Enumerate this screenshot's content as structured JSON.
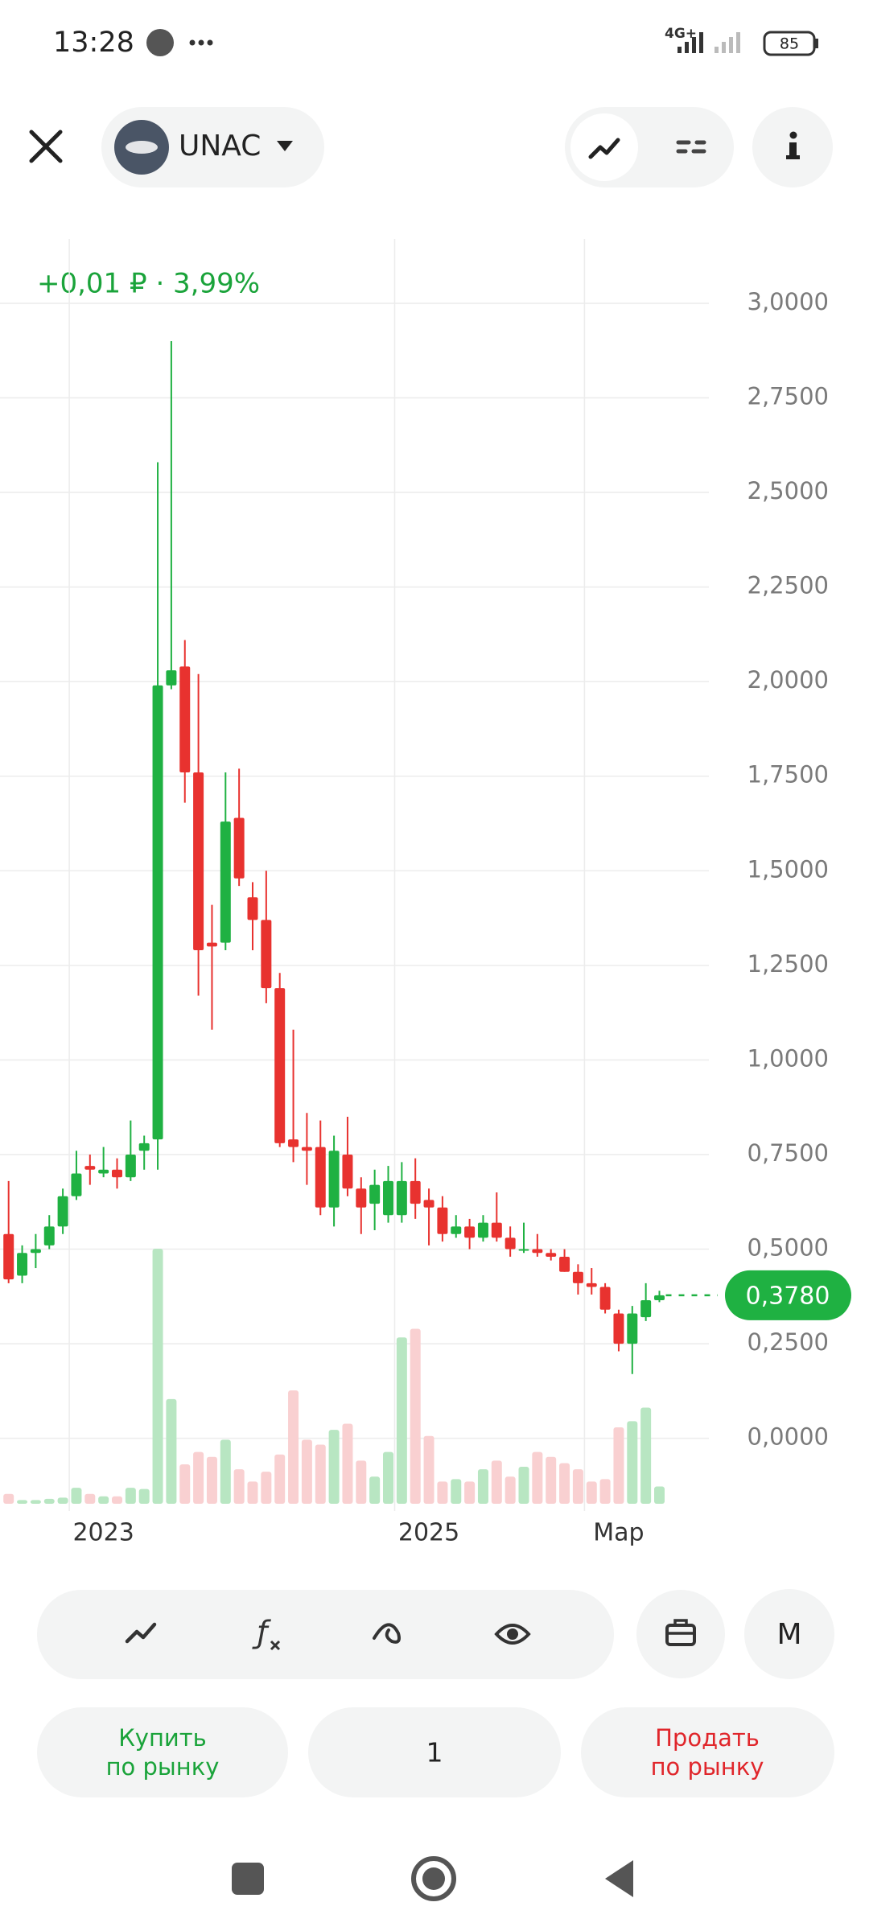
{
  "status_bar": {
    "time": "13:28",
    "network": "4G+",
    "battery": "85"
  },
  "header": {
    "ticker": "UNAC"
  },
  "chart_data": {
    "type": "candlestick",
    "annotation": "+0,01 ₽ · 3,99%",
    "categories": [
      null,
      null,
      null,
      null,
      null,
      null,
      null,
      "2023",
      null,
      null,
      null,
      null,
      null,
      null,
      null,
      null,
      null,
      null,
      null,
      null,
      null,
      null,
      null,
      null,
      null,
      null,
      null,
      null,
      null,
      null,
      null,
      "2025",
      null,
      null,
      null,
      null,
      null,
      null,
      null,
      null,
      null,
      null,
      null,
      null,
      null,
      "Мар",
      null,
      null,
      null
    ],
    "open": [
      0.54,
      0.43,
      0.49,
      0.51,
      0.56,
      0.64,
      0.72,
      0.7,
      0.71,
      0.69,
      0.76,
      0.79,
      1.99,
      2.04,
      1.76,
      1.31,
      1.31,
      1.64,
      1.43,
      1.37,
      1.19,
      0.79,
      0.77,
      0.77,
      0.61,
      0.75,
      0.66,
      0.62,
      0.59,
      0.59,
      0.68,
      0.63,
      0.61,
      0.54,
      0.56,
      0.53,
      0.57,
      0.53,
      0.5,
      0.5,
      0.49,
      0.48,
      0.44,
      0.41,
      0.4,
      0.33,
      0.25,
      0.32,
      0.365
    ],
    "high": [
      0.68,
      0.51,
      0.54,
      0.59,
      0.66,
      0.76,
      0.75,
      0.77,
      0.74,
      0.84,
      0.8,
      2.58,
      2.9,
      2.11,
      2.02,
      1.41,
      1.76,
      1.77,
      1.47,
      1.5,
      1.23,
      1.08,
      0.86,
      0.84,
      0.8,
      0.85,
      0.69,
      0.71,
      0.72,
      0.73,
      0.74,
      0.66,
      0.64,
      0.59,
      0.58,
      0.59,
      0.65,
      0.56,
      0.57,
      0.54,
      0.5,
      0.5,
      0.46,
      0.45,
      0.41,
      0.34,
      0.35,
      0.41,
      0.39
    ],
    "low": [
      0.41,
      0.41,
      0.45,
      0.5,
      0.54,
      0.63,
      0.67,
      0.69,
      0.66,
      0.68,
      0.71,
      0.71,
      1.98,
      1.68,
      1.17,
      1.08,
      1.29,
      1.46,
      1.29,
      1.15,
      0.77,
      0.73,
      0.67,
      0.59,
      0.56,
      0.64,
      0.54,
      0.55,
      0.57,
      0.57,
      0.58,
      0.51,
      0.52,
      0.53,
      0.5,
      0.52,
      0.52,
      0.48,
      0.49,
      0.48,
      0.47,
      0.44,
      0.38,
      0.38,
      0.33,
      0.23,
      0.17,
      0.31,
      0.36
    ],
    "close": [
      0.42,
      0.49,
      0.5,
      0.56,
      0.64,
      0.7,
      0.71,
      0.71,
      0.69,
      0.75,
      0.78,
      1.99,
      2.03,
      1.76,
      1.29,
      1.3,
      1.63,
      1.48,
      1.37,
      1.19,
      0.78,
      0.77,
      0.76,
      0.61,
      0.76,
      0.66,
      0.61,
      0.67,
      0.68,
      0.68,
      0.62,
      0.61,
      0.54,
      0.56,
      0.53,
      0.57,
      0.53,
      0.5,
      0.5,
      0.49,
      0.48,
      0.44,
      0.41,
      0.4,
      0.34,
      0.25,
      0.33,
      0.365,
      0.378
    ],
    "volume": [
      8,
      3,
      3,
      4,
      5,
      13,
      8,
      6,
      6,
      13,
      12,
      207,
      85,
      32,
      42,
      38,
      52,
      28,
      18,
      26,
      40,
      92,
      52,
      48,
      60,
      65,
      35,
      22,
      42,
      135,
      142,
      55,
      18,
      20,
      18,
      28,
      35,
      22,
      30,
      42,
      38,
      33,
      28,
      18,
      20,
      62,
      67,
      78,
      14
    ],
    "ylim": [
      -0.19,
      3.17
    ],
    "yticks": [
      {
        "value": 0,
        "label": "0,0000"
      },
      {
        "value": 0.25,
        "label": "0,2500"
      },
      {
        "value": 0.5,
        "label": "0,5000"
      },
      {
        "value": 0.75,
        "label": "0,7500"
      },
      {
        "value": 1,
        "label": "1,0000"
      },
      {
        "value": 1.25,
        "label": "1,2500"
      },
      {
        "value": 1.5,
        "label": "1,5000"
      },
      {
        "value": 1.75,
        "label": "1,7500"
      },
      {
        "value": 2,
        "label": "2,0000"
      },
      {
        "value": 2.25,
        "label": "2,2500"
      },
      {
        "value": 2.5,
        "label": "2,5000"
      },
      {
        "value": 2.75,
        "label": "2,7500"
      },
      {
        "value": 3,
        "label": "3,0000"
      }
    ],
    "last_price": {
      "value": 0.378,
      "label": "0,3780"
    },
    "grid": true,
    "up_color": "#1fb142",
    "down_color": "#e8322f",
    "up_volume_color": "#b8e6c2",
    "down_volume_color": "#f9d0d1"
  },
  "toolbar": {
    "period": "M"
  },
  "order": {
    "buy": [
      "Купить",
      "по рынку"
    ],
    "quantity": "1",
    "sell": [
      "Продать",
      "по рынку"
    ]
  }
}
